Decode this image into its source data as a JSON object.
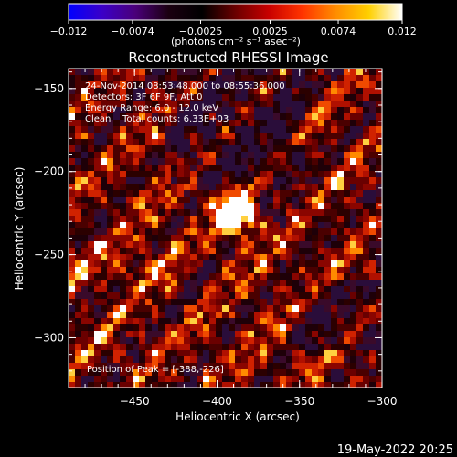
{
  "chart_data": {
    "type": "heatmap",
    "title": "Reconstructed RHESSI Image",
    "xlabel": "Heliocentric X (arcsec)",
    "ylabel": "Heliocentric Y (arcsec)",
    "xlim": [
      -490,
      -300
    ],
    "ylim": [
      -330,
      -138
    ],
    "x_ticks": [
      {
        "value": -450,
        "label": "−450"
      },
      {
        "value": -400,
        "label": "−400"
      },
      {
        "value": -350,
        "label": "−350"
      },
      {
        "value": -300,
        "label": "−300"
      }
    ],
    "y_ticks": [
      {
        "value": -150,
        "label": "−150"
      },
      {
        "value": -200,
        "label": "−200"
      },
      {
        "value": -250,
        "label": "−250"
      },
      {
        "value": -300,
        "label": "−300"
      }
    ],
    "colorbar": {
      "range": [
        -0.012,
        0.012
      ],
      "unit_label": "(photons cm⁻² s⁻¹ asec⁻²)",
      "ticks": [
        {
          "value": -0.012,
          "label": "−0.012"
        },
        {
          "value": -0.0074,
          "label": "−0.0074"
        },
        {
          "value": -0.0025,
          "label": "−0.0025"
        },
        {
          "value": 0.0025,
          "label": "0.0025"
        },
        {
          "value": 0.0074,
          "label": "0.0074"
        },
        {
          "value": 0.012,
          "label": "0.012"
        }
      ],
      "colors": [
        "#0000ff",
        "#3b00c8",
        "#4a007a",
        "#1a0010",
        "#000000",
        "#6a0000",
        "#c80000",
        "#ff3300",
        "#ff8c00",
        "#ffd000",
        "#ffffff"
      ]
    },
    "annotations": [
      "24-Nov-2014 08:53:48.000 to 08:55:36.000",
      "Detectors: 3F 6F 9F, Att 0",
      "Energy Range: 6.0 - 12.0 keV",
      "Clean    Total counts: 6.33E+03"
    ],
    "peak_label": "Position of Peak = [-388,-226]",
    "peak": {
      "x": -388,
      "y": -226
    }
  },
  "footer": {
    "date": "19-May-2022 20:25"
  }
}
